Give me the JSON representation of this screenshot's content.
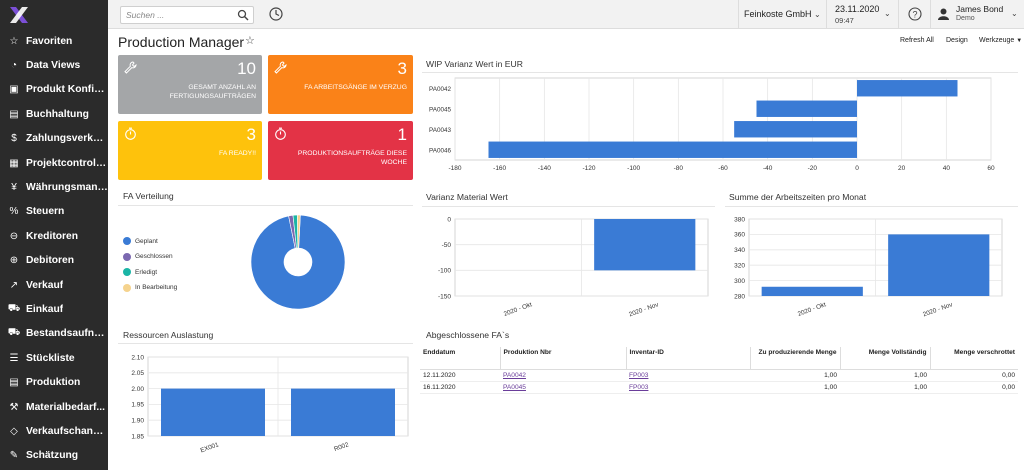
{
  "sidebar": {
    "items": [
      {
        "label": "Favoriten",
        "icon": "star-icon",
        "glyph": "☆"
      },
      {
        "label": "Data Views",
        "icon": "pie-chart-icon",
        "glyph": "◔"
      },
      {
        "label": "Produkt Konfig...",
        "icon": "box-icon",
        "glyph": "▣"
      },
      {
        "label": "Buchhaltung",
        "icon": "ledger-icon",
        "glyph": "▤"
      },
      {
        "label": "Zahlungsverkehr",
        "icon": "dollar-icon",
        "glyph": "$"
      },
      {
        "label": "Projektcontrolli...",
        "icon": "project-icon",
        "glyph": "▦"
      },
      {
        "label": "Währungsmana...",
        "icon": "currency-icon",
        "glyph": "¥"
      },
      {
        "label": "Steuern",
        "icon": "percent-icon",
        "glyph": "%"
      },
      {
        "label": "Kreditoren",
        "icon": "minus-circle-icon",
        "glyph": "⊖"
      },
      {
        "label": "Debitoren",
        "icon": "plus-circle-icon",
        "glyph": "⊕"
      },
      {
        "label": "Verkauf",
        "icon": "sales-icon",
        "glyph": "↗"
      },
      {
        "label": "Einkauf",
        "icon": "cart-icon",
        "glyph": "⛟"
      },
      {
        "label": "Bestandsaufna...",
        "icon": "truck-icon",
        "glyph": "⛟"
      },
      {
        "label": "Stückliste",
        "icon": "list-icon",
        "glyph": "☰"
      },
      {
        "label": "Produktion",
        "icon": "production-icon",
        "glyph": "▤"
      },
      {
        "label": "Materialbedarf...",
        "icon": "material-icon",
        "glyph": "⚒"
      },
      {
        "label": "Verkaufschancen",
        "icon": "tag-icon",
        "glyph": "◇"
      },
      {
        "label": "Schätzung",
        "icon": "estimate-icon",
        "glyph": "✎"
      }
    ]
  },
  "topbar": {
    "search_placeholder": "Suchen ...",
    "company": "Feinkoste GmbH",
    "date": "23.11.2020",
    "time": "09:47",
    "user_name": "James Bond",
    "user_role": "Demo"
  },
  "header": {
    "title": "Production Manager",
    "refresh": "Refresh All",
    "design": "Design",
    "tools": "Werkzeuge"
  },
  "tiles": [
    {
      "value": "10",
      "caption": "Gesamt Anzahl an Fertigungsaufträgen",
      "color": "#a4a6a8"
    },
    {
      "value": "3",
      "caption": "FA Arbeitsgänge im Verzug",
      "color": "#fa8218"
    },
    {
      "value": "3",
      "caption": "FA Ready!!",
      "color": "#fec20c"
    },
    {
      "value": "1",
      "caption": "Produktionsaufträge diese Woche",
      "color": "#e33346"
    }
  ],
  "panels": {
    "wip": "WIP Varianz Wert in EUR",
    "fa_verteilung": "FA Verteilung",
    "varianz_material": "Varianz Material Wert",
    "arbeitszeiten": "Summe der Arbeitszeiten pro Monat",
    "ressourcen": "Ressourcen Auslastung",
    "abgeschlossene": "Abgeschlossene FA`s"
  },
  "chart_data": [
    {
      "type": "bar",
      "orientation": "horizontal",
      "categories": [
        "PA0042",
        "PA0045",
        "PA0043",
        "PA0046"
      ],
      "values": [
        45,
        -45,
        -55,
        -165
      ],
      "xlim": [
        -180,
        60
      ],
      "xticks": [
        -180,
        -160,
        -140,
        -120,
        -100,
        -80,
        -60,
        -40,
        -20,
        0,
        20,
        40,
        60
      ],
      "color": "#3a7bd5"
    },
    {
      "type": "pie",
      "legend": [
        "Geplant",
        "Geschlossen",
        "Erledigt",
        "In Bearbeitung"
      ],
      "values": [
        96,
        1.5,
        1.5,
        1
      ],
      "colors": [
        "#3a7bd5",
        "#7b68b0",
        "#1bb5a6",
        "#f5d38e"
      ],
      "legend_position": "left"
    },
    {
      "type": "bar",
      "categories": [
        "2020 - Okt",
        "2020 - Nov"
      ],
      "values": [
        0,
        -100
      ],
      "ylim": [
        -150,
        0
      ],
      "yticks": [
        0,
        -50,
        -100,
        -150
      ],
      "color": "#3a7bd5"
    },
    {
      "type": "bar",
      "categories": [
        "2020 - Okt",
        "2020 - Nov"
      ],
      "values": [
        292,
        360
      ],
      "ylim": [
        280,
        380
      ],
      "yticks": [
        280,
        300,
        320,
        340,
        360,
        380
      ],
      "color": "#3a7bd5"
    },
    {
      "type": "bar",
      "categories": [
        "EX001",
        "R002"
      ],
      "values": [
        2.0,
        2.0
      ],
      "ylim": [
        1.85,
        2.1
      ],
      "yticks": [
        "1.85",
        "1.90",
        "1.95",
        "2.00",
        "2.05",
        "2.10"
      ],
      "color": "#3a7bd5"
    }
  ],
  "table": {
    "headers": [
      "Enddatum",
      "Produktion Nbr",
      "Inventar-ID",
      "Zu produzierende Menge",
      "Menge Vollständig",
      "Menge verschrottet"
    ],
    "rows": [
      [
        "12.11.2020",
        "PA0042",
        "FP003",
        "1,00",
        "1,00",
        "0,00"
      ],
      [
        "16.11.2020",
        "PA0045",
        "FP003",
        "1,00",
        "1,00",
        "0,00"
      ]
    ]
  }
}
